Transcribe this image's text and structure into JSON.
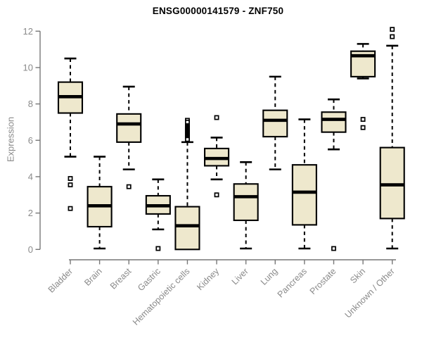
{
  "chart_data": {
    "type": "boxplot",
    "title": "ENSG00000141579 - ZNF750",
    "ylabel": "Expression",
    "xlabel": "",
    "ylim": [
      0,
      12
    ],
    "yticks": [
      0,
      2,
      4,
      6,
      8,
      10,
      12
    ],
    "grid": false,
    "legend": "none",
    "colors": {
      "box_fill": "#EEE8CD",
      "box_stroke": "#000000",
      "median": "#000000",
      "whisker": "#000000",
      "outlier_fill": "#ffffff",
      "outlier_stroke": "#000000",
      "axis": "#777777",
      "tick_label": "#8a8a8a",
      "title": "#000000"
    },
    "categories": [
      "Bladder",
      "Brain",
      "Breast",
      "Gastric",
      "Hematopoietic cells",
      "Kidney",
      "Liver",
      "Lung",
      "Pancreas",
      "Prostate",
      "Skin",
      "Unknown / Other"
    ],
    "boxes": [
      {
        "category": "Bladder",
        "low": 5.1,
        "q1": 7.5,
        "median": 8.4,
        "q3": 9.2,
        "high": 10.5,
        "outliers": [
          3.9,
          3.55,
          2.25
        ]
      },
      {
        "category": "Brain",
        "low": 0.05,
        "q1": 1.25,
        "median": 2.4,
        "q3": 3.45,
        "high": 5.1,
        "outliers": []
      },
      {
        "category": "Breast",
        "low": 4.4,
        "q1": 5.9,
        "median": 6.9,
        "q3": 7.45,
        "high": 8.95,
        "outliers": [
          3.45
        ]
      },
      {
        "category": "Gastric",
        "low": 1.1,
        "q1": 1.95,
        "median": 2.4,
        "q3": 2.95,
        "high": 3.85,
        "outliers": [
          0.05
        ]
      },
      {
        "category": "Hematopoietic cells",
        "low": 0.0,
        "q1": 0.0,
        "median": 1.3,
        "q3": 2.35,
        "high": 5.9,
        "outliers": [
          7.1,
          7.0,
          6.8,
          6.75,
          6.7,
          6.65,
          6.6,
          6.55,
          6.5,
          6.45,
          6.4,
          6.35,
          6.3,
          6.25,
          6.2,
          6.15,
          6.1,
          6.05
        ]
      },
      {
        "category": "Kidney",
        "low": 3.85,
        "q1": 4.6,
        "median": 5.0,
        "q3": 5.55,
        "high": 6.15,
        "outliers": [
          7.25,
          3.0
        ]
      },
      {
        "category": "Liver",
        "low": 0.05,
        "q1": 1.6,
        "median": 2.9,
        "q3": 3.6,
        "high": 4.8,
        "outliers": []
      },
      {
        "category": "Lung",
        "low": 4.4,
        "q1": 6.2,
        "median": 7.1,
        "q3": 7.65,
        "high": 9.5,
        "outliers": []
      },
      {
        "category": "Pancreas",
        "low": 0.05,
        "q1": 1.35,
        "median": 3.15,
        "q3": 4.65,
        "high": 7.15,
        "outliers": []
      },
      {
        "category": "Prostate",
        "low": 5.5,
        "q1": 6.45,
        "median": 7.15,
        "q3": 7.55,
        "high": 8.25,
        "outliers": [
          0.05
        ]
      },
      {
        "category": "Skin",
        "low": 9.4,
        "q1": 9.5,
        "median": 10.65,
        "q3": 10.9,
        "high": 11.3,
        "outliers": [
          7.15,
          6.7
        ]
      },
      {
        "category": "Unknown / Other",
        "low": 0.05,
        "q1": 1.7,
        "median": 3.55,
        "q3": 5.6,
        "high": 11.2,
        "outliers": [
          12.1,
          11.7
        ]
      }
    ]
  }
}
